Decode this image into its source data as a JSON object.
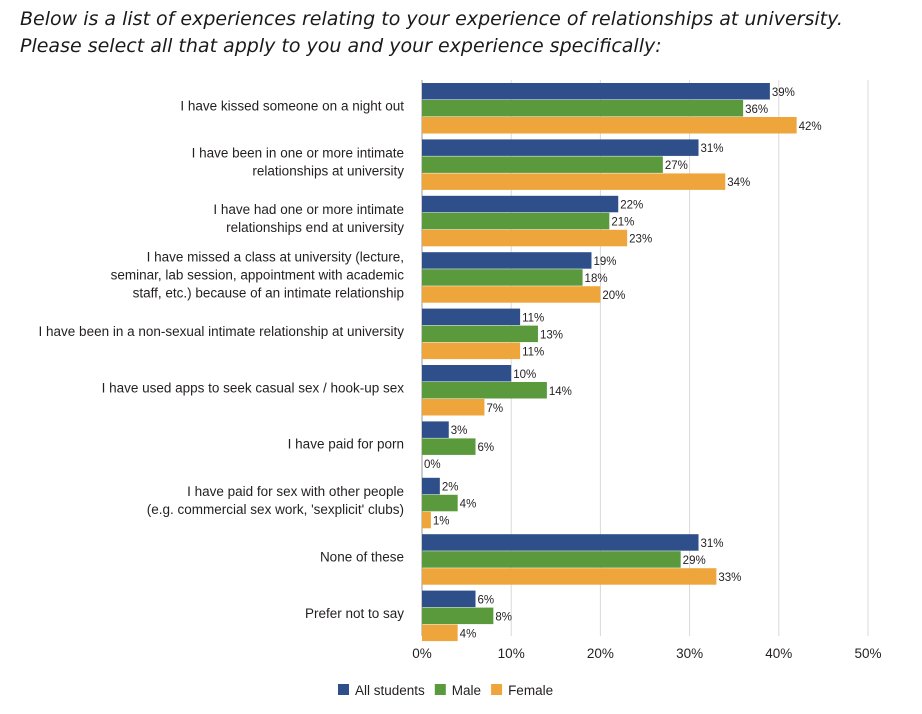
{
  "question": "Below is a list of experiences relating to your experience of relationships at university. Please select all that apply to you and your experience specifically:",
  "chart_data": {
    "type": "bar",
    "orientation": "horizontal",
    "categories": [
      [
        "I have kissed someone on a night out"
      ],
      [
        "I have been in one or more intimate",
        "relationships at university"
      ],
      [
        "I have had one or more intimate",
        "relationships end at university"
      ],
      [
        "I have missed a class at university (lecture,",
        "seminar, lab session, appointment with academic",
        "staff, etc.) because of an intimate relationship"
      ],
      [
        "I have been in a non-sexual intimate relationship at university"
      ],
      [
        "I have used apps to seek casual sex / hook-up sex"
      ],
      [
        "I have paid for porn"
      ],
      [
        "I have paid for sex with other people",
        "(e.g. commercial sex work, 'sexplicit' clubs)"
      ],
      [
        "None of these"
      ],
      [
        "Prefer not to say"
      ]
    ],
    "series": [
      {
        "name": "All students",
        "color": "#2e4f8a",
        "values": [
          39,
          31,
          22,
          19,
          11,
          10,
          3,
          2,
          31,
          6
        ],
        "labels": [
          "39%",
          "31%",
          "22%",
          "19%",
          "11%",
          "10%",
          "3%",
          "2%",
          "31%",
          "6%"
        ]
      },
      {
        "name": "Male",
        "color": "#5a9a3c",
        "values": [
          36,
          27,
          21,
          18,
          13,
          14,
          6,
          4,
          29,
          8
        ],
        "labels": [
          "36%",
          "27%",
          "21%",
          "18%",
          "13%",
          "14%",
          "6%",
          "4%",
          "29%",
          "8%"
        ]
      },
      {
        "name": "Female",
        "color": "#eea63c",
        "values": [
          42,
          34,
          23,
          20,
          11,
          7,
          0,
          1,
          33,
          4
        ],
        "labels": [
          "42%",
          "34%",
          "23%",
          "20%",
          "11%",
          "7%",
          "0%",
          "1%",
          "33%",
          "4%"
        ]
      }
    ],
    "xlim": [
      0,
      50
    ],
    "ticks": [
      0,
      10,
      20,
      30,
      40,
      50
    ],
    "tick_labels": [
      "0%",
      "10%",
      "20%",
      "30%",
      "40%",
      "50%"
    ],
    "grid": true,
    "legend_position": "bottom"
  }
}
